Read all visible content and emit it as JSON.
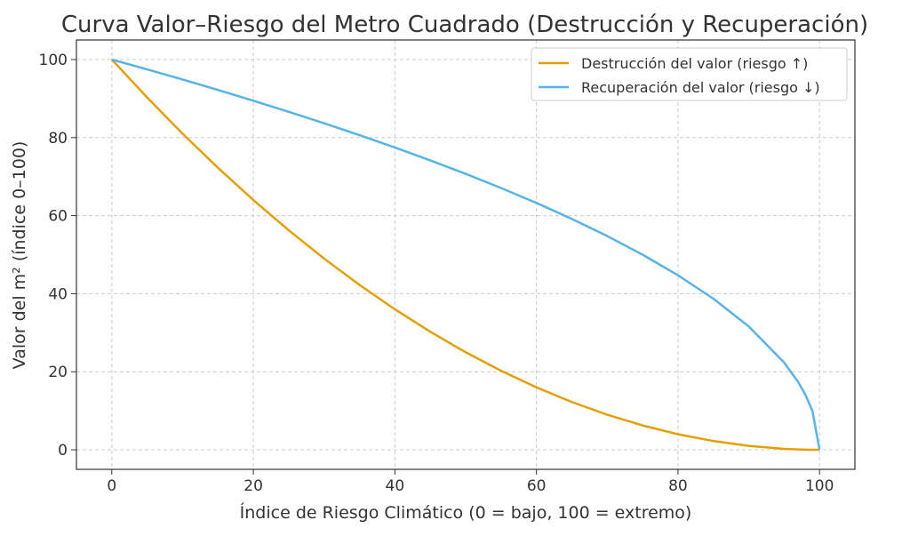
{
  "chart_data": {
    "type": "line",
    "title": "Curva Valor–Riesgo del Metro Cuadrado (Destrucción y Recuperación)",
    "xlabel": "Índice de Riesgo Climático (0 = bajo, 100 = extremo)",
    "ylabel": "Valor del m² (índice 0–100)",
    "xlim": [
      -5,
      105
    ],
    "ylim": [
      -5,
      105
    ],
    "xticks": [
      0,
      20,
      40,
      60,
      80,
      100
    ],
    "yticks": [
      0,
      20,
      40,
      60,
      80,
      100
    ],
    "grid": true,
    "legend_position": "top-right",
    "x": [
      0,
      5,
      10,
      15,
      20,
      25,
      30,
      35,
      40,
      45,
      50,
      55,
      60,
      65,
      70,
      75,
      80,
      85,
      90,
      95,
      97,
      98,
      99,
      100
    ],
    "series": [
      {
        "name": "Destrucción del valor (riesgo ↑)",
        "color": "#E69F00",
        "values": [
          100,
          90.25,
          81,
          72.25,
          64,
          56.25,
          49,
          42.25,
          36,
          30.25,
          25,
          20.25,
          16,
          12.25,
          9,
          6.25,
          4,
          2.25,
          1,
          0.25,
          0.09,
          0.04,
          0.01,
          0
        ]
      },
      {
        "name": "Recuperación del valor (riesgo ↓)",
        "color": "#56B4E9",
        "values": [
          100,
          97.47,
          94.87,
          92.2,
          89.44,
          86.6,
          83.67,
          80.62,
          77.46,
          74.16,
          70.71,
          67.08,
          63.25,
          59.16,
          54.77,
          50,
          44.72,
          38.73,
          31.62,
          22.36,
          17.32,
          14.14,
          10,
          0
        ]
      }
    ]
  }
}
